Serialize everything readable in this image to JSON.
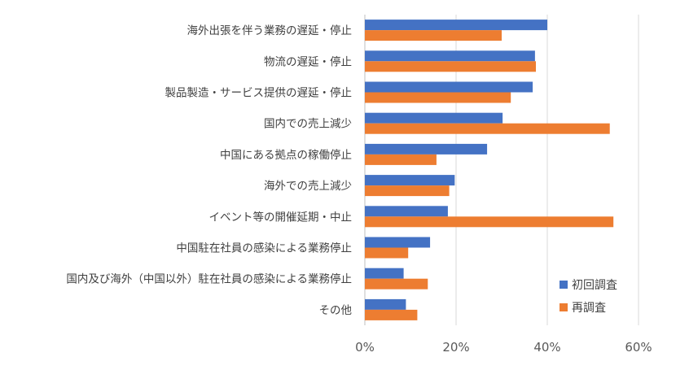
{
  "chart_data": {
    "type": "bar",
    "orientation": "horizontal",
    "categories": [
      "海外出張を伴う業務の遅延・停止",
      "物流の遅延・停止",
      "製品製造・サービス提供の遅延・停止",
      "国内での売上減少",
      "中国にある拠点の稼働停止",
      "海外での売上減少",
      "イベント等の開催延期・中止",
      "中国駐在社員の感染による業務停止",
      "国内及び海外（中国以外）駐在社員の感染による業務停止",
      "その他"
    ],
    "series": [
      {
        "name": "初回調査",
        "color": "#4472C4",
        "values": [
          40,
          37.3,
          36.8,
          30.2,
          26.8,
          19.7,
          18.2,
          14.3,
          8.5,
          9.0
        ]
      },
      {
        "name": "再調査",
        "color": "#ED7D31",
        "values": [
          30.0,
          37.5,
          32.0,
          53.7,
          15.7,
          18.5,
          54.5,
          9.5,
          13.8,
          11.5
        ]
      }
    ],
    "x_ticks": [
      "0%",
      "20%",
      "40%",
      "60%"
    ],
    "xlim": [
      0,
      60
    ],
    "grid": true,
    "legend_position": "bottom-right",
    "title": "",
    "xlabel": "",
    "ylabel": ""
  }
}
